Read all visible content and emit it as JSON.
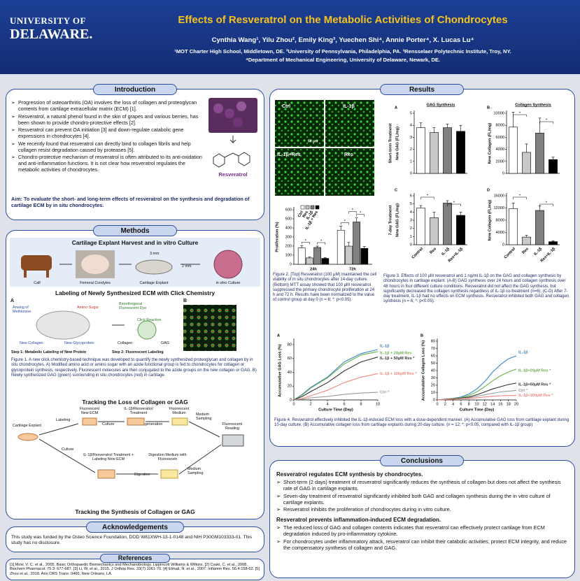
{
  "header": {
    "logo_line1": "UNIVERSITY OF",
    "logo_line2": "DELAWARE.",
    "title": "Effects of Resveratrol on the Metabolic Activities of Chondrocytes",
    "authors": "Cynthia Wang¹, Yilu Zhou², Emily King³, Yuechen Shi⁴, Annie Porter⁴, X. Lucas Lu⁴",
    "affiliations": [
      "¹MOT Charter High School, Middletown, DE. ²University of Pennsylvania, Philadelphia, PA. ³Rensselaer Polytechnic Institute, Troy, NY.",
      "⁴Department of Mechanical Engineering, University of Delaware, Newark, DE."
    ]
  },
  "introduction": {
    "heading": "Introduction",
    "bullets": [
      "Progression of osteoarthritis (OA) involves the loss of collagen and proteoglycan contents from cartilage extracellular matrix (ECM) [1].",
      "Resveratrol, a natural phenol found in the skin of grapes and various berries, has been shown to provide chondro-protective effects [2].",
      "Resveratrol can prevent OA initiation [3] and down-regulate catabolic gene expressions in chondrocytes [4].",
      "We recently found that resveratrol can directly bind to collagen fibrils and help collagen resist degradation caused by proteases [5].",
      "Chondro-protective mechanism of resveratrol is often attributed to its anti-oxidation and anti-inflammation functions. It is not clear how resveratrol regulates the metabolic activities of chondrocytes."
    ],
    "figure_label": "Resveratrol",
    "aim": "Aim: To evaluate the short- and long-term effects of resveratrol on the synthesis and degradation of cartilage ECM by in situ chondrocytes."
  },
  "methods": {
    "heading": "Methods",
    "section1": "Cartilage Explant Harvest and in vitro Culture",
    "steps": [
      "Calf",
      "Femoral Condyles",
      "Cartilage Explant",
      "in vitro Culture"
    ],
    "dims": [
      "3 mm",
      "2 mm"
    ],
    "section2": "Labeling of Newly Synthesized ECM with Click Chemistry",
    "click_labels": [
      "A",
      "Analog of Methionine",
      "Amino Sugar",
      "Chondrocyte",
      "New Collagen",
      "New Glycoprotein",
      "Step 1: Metabolic Labeling of New Protein",
      "Bioorthogonal Fluorescent Dye",
      "Click Reaction",
      "Collagen",
      "GAG",
      "Step 2: Fluorescent Labeling",
      "B",
      "40 µm"
    ],
    "caption": "Figure 1. A new click chemistry-based technique was developed to quantify the newly synthesized proteoglycan and collagen by in situ chondrocytes. A) Modified amino acid or amino sugar with an azide functional group is fed to chondrocytes for collagen or glycoprotein synthesis, respectively. Fluorescent molecules are then conjugated to the azide groups on the new collagen or GAG. B) Newly synthesized GAG (green) surrounding in situ chondrocytes (red) in cartilage.",
    "section3": "Tracking the Loss of Collagen or GAG",
    "flow_labels": [
      "Cartilage Explant",
      "Labeling",
      "Fluorescent New ECM",
      "Culture",
      "IL-1β/Resveratrol Treatment",
      "Degeneration",
      "Fluorescent Medium",
      "Medium Sampling",
      "Fluorescent Reading",
      "Culture",
      "IL-1β/Resveratrol Treatment + Labeling New ECM",
      "Digestion",
      "Digestion Medium with Fluorescein",
      "Medium Sampling"
    ],
    "section4": "Tracking the Synthesis of Collagen or GAG"
  },
  "acknowledgements": {
    "heading": "Acknowledgements",
    "text": "This study was funded by the Osteo Science Foundation, DOD W81XWH-13-1-0148 and NIH P30GM103333-01. This study has no disclosure."
  },
  "references": {
    "heading": "References",
    "text": "[1] Mow, V. C. et al., 2005. Basic Orthopaedic Biomechanics and Mechanobiology. Lippincott Williams & Wilkins. [2] Csaki, C. et al., 2008. Biochem Pharmacol. 75.3: 677-687. [3] Li, W. et al., 2015. J Orthop Res. 33(7):1061-70. [4] Elmali, N. et al., 2007. Inflamm Res. 56.4:158-62. [5] Zhou et al., 2018. Ann ORS Trans: 0466, New Orleans, LA."
  },
  "results": {
    "heading": "Results",
    "micro_labels": [
      "Ctrl",
      "IL-1β",
      "IL-1β+Res",
      "Res",
      "50 µm"
    ],
    "charts": [
      {
        "type": "grouped_bar",
        "ylabel": "Proliferation (%)",
        "categories": [
          "24h",
          "72h"
        ],
        "series": [
          {
            "name": "Ctrl",
            "color": "#ffffff",
            "values": [
              180,
              375
            ],
            "errors": [
              25,
              45
            ]
          },
          {
            "name": "Res",
            "color": "#c8c8c8",
            "values": [
              70,
              200
            ],
            "errors": [
              10,
              40
            ]
          },
          {
            "name": "IL-1β",
            "color": "#808080",
            "values": [
              185,
              465
            ],
            "errors": [
              15,
              45
            ]
          },
          {
            "name": "IL-1β + Res",
            "color": "#000000",
            "values": [
              65,
              175
            ],
            "errors": [
              8,
              20
            ]
          }
        ],
        "ylim": [
          0,
          600
        ],
        "yticks": [
          0,
          100,
          200,
          300,
          400,
          500,
          600
        ],
        "annotations": [
          "*",
          "*",
          "*",
          "*",
          "*"
        ]
      },
      {
        "type": "bar",
        "panel": "A",
        "title": "GAG Synthesis",
        "row_label": "Short-term Treatment",
        "ylabel": "New GAG (FL/mg)",
        "categories": [
          null,
          null,
          null,
          null
        ],
        "values": [
          3.8,
          3.4,
          3.8,
          3.5
        ],
        "errors": [
          0.4,
          0.4,
          0.3,
          0.5
        ],
        "colors": [
          "#ffffff",
          "#c8c8c8",
          "#808080",
          "#000000"
        ],
        "ylim": [
          0,
          5
        ],
        "yticks": [
          0,
          1,
          2,
          3,
          4,
          5
        ]
      },
      {
        "type": "bar",
        "panel": "B",
        "title": "Collagen Synthesis",
        "ylabel": "New Collagen (FL/mg)",
        "categories": [
          null,
          null,
          null,
          null
        ],
        "values": [
          7700,
          3500,
          6700,
          2300
        ],
        "errors": [
          2500,
          1400,
          2500,
          400
        ],
        "colors": [
          "#ffffff",
          "#c8c8c8",
          "#808080",
          "#000000"
        ],
        "ylim": [
          0,
          10000
        ],
        "yticks": [
          0,
          2000,
          4000,
          6000,
          8000,
          10000
        ],
        "annotations": [
          "*",
          "*"
        ]
      },
      {
        "type": "bar",
        "panel": "C",
        "row_label": "7-day Treatment",
        "ylabel": "New GAG (FL/mg)",
        "categories": [
          "Control",
          "Res",
          "IL-1β",
          "Res+IL-1β"
        ],
        "values": [
          4.5,
          3.3,
          5.1,
          3.6
        ],
        "errors": [
          0.3,
          0.7,
          0.3,
          0.4
        ],
        "colors": [
          "#ffffff",
          "#c8c8c8",
          "#808080",
          "#000000"
        ],
        "ylim": [
          0,
          6
        ],
        "yticks": [
          0,
          1,
          2,
          3,
          4,
          5,
          6
        ],
        "annotations": [
          "*",
          "*"
        ]
      },
      {
        "type": "bar",
        "panel": "D",
        "ylabel": "New Collagen (FL/mg)",
        "categories": [
          "Control",
          "Res",
          "IL-1β",
          "Res+IL-1β"
        ],
        "values": [
          11800,
          2500,
          11200,
          1000
        ],
        "errors": [
          1800,
          600,
          1500,
          300
        ],
        "colors": [
          "#ffffff",
          "#c8c8c8",
          "#808080",
          "#000000"
        ],
        "ylim": [
          0,
          16000
        ],
        "yticks": [
          0,
          4000,
          8000,
          12000,
          16000
        ],
        "annotations": [
          "*",
          "*"
        ]
      },
      {
        "type": "line",
        "panel": "A",
        "xlabel": "Culture Time (Day)",
        "ylabel": "Accumulative GAG Loss (%)",
        "x": [
          0,
          1,
          2,
          4,
          6,
          8,
          10
        ],
        "xlim": [
          0,
          10
        ],
        "xticks": [
          0,
          2,
          4,
          6,
          8,
          10
        ],
        "ylim": [
          0,
          85
        ],
        "yticks": [
          0,
          20,
          40,
          60,
          80
        ],
        "series": [
          {
            "name": "IL-1β",
            "color": "#3a86c8",
            "values": [
              0,
              8,
              18,
              33,
              55,
              67,
              73
            ]
          },
          {
            "name": "IL-1β + 20µM Res",
            "color": "#6ab04c",
            "values": [
              0,
              7,
              17,
              32,
              52,
              65,
              70
            ]
          },
          {
            "name": "IL-1β + 50µM Res *",
            "color": "#333333",
            "values": [
              0,
              5,
              12,
              25,
              42,
              55,
              62
            ]
          },
          {
            "name": "IL-1β + 100µM Res *",
            "color": "#f4877f",
            "values": [
              0,
              2,
              6,
              14,
              25,
              33,
              38
            ]
          },
          {
            "name": "Ctrl *",
            "color": "#9a9a9a",
            "values": [
              0,
              1,
              3,
              5,
              8,
              10,
              11
            ]
          }
        ]
      },
      {
        "type": "line",
        "panel": "B",
        "xlabel": "Culture Time (Day)",
        "ylabel": "Accumulative Collagen Loss (%)",
        "x": [
          0,
          2,
          4,
          6,
          8,
          10,
          12,
          14,
          16,
          18,
          20
        ],
        "xlim": [
          0,
          20
        ],
        "xticks": [
          0,
          2,
          4,
          6,
          8,
          10,
          12,
          14,
          16,
          18,
          20
        ],
        "ylim": [
          0,
          80
        ],
        "yticks": [
          0,
          10,
          20,
          30,
          40,
          50,
          60,
          70,
          80
        ],
        "series": [
          {
            "name": "IL-1β",
            "color": "#3a86c8",
            "values": [
              0,
              1,
              2,
              4,
              8,
              15,
              25,
              38,
              48,
              56,
              60
            ]
          },
          {
            "name": "IL-1β+20µM Res *",
            "color": "#6ab04c",
            "values": [
              0,
              1,
              2,
              3,
              6,
              11,
              18,
              26,
              33,
              38,
              42
            ]
          },
          {
            "name": "IL-1β+50µM Res *",
            "color": "#333333",
            "values": [
              0,
              1,
              1.5,
              2.5,
              4,
              7,
              11,
              15,
              18,
              21,
              23
            ]
          },
          {
            "name": "Ctrl *",
            "color": "#9a9a9a",
            "values": [
              0,
              0.5,
              1,
              2,
              3,
              5,
              7,
              9,
              11,
              12,
              13
            ]
          },
          {
            "name": "IL-1β+100µM Res *",
            "color": "#f4877f",
            "values": [
              0,
              0.5,
              1,
              1.5,
              2,
              3,
              4,
              5,
              5.5,
              6,
              6
            ]
          }
        ]
      }
    ],
    "figure2": "Figure 2. [Top] Resveratrol (100 µM) maintained the cell viability of in situ chondrocytes after 14-day culture. (Bottom) MTT assay showed that 100 µM resveratrol suppressed the primary chondrocyte proliferation at 24 h and 72 h. Results have been normalized to the value of control group at day 0 (n = 8; *: p<0.05).",
    "figure3": "Figure 3. Effects of 100 µM resveratrol and 1 ng/ml IL-1β on the GAG and collagen synthesis by chondrocytes in cartilage explant. (A-B) GAG synthesis over 24 hours and collagen synthesis over 48 hours in four different culture conditions. Resveratrol did not affect the GAG synthesis, but significantly decreased the collagen synthesis regardless of IL-1β co-treatment (n=6). (C-D) After 7-day treatment, IL-1β had no effects on ECM synthesis. Resveratrol inhibited both GAG and collagen synthesis (n = 6; *: p<0.05).",
    "figure4": "Figure 4. Resveratrol effectively inhibited the IL-1β-induced ECM loss with a dose-dependent manner. (A) Accumulative GAG loss from cartilage explant during 10-day culture. (B) Accumulative collagen loss from cartilage explants during 20-day culture. (n = 12; *: p<0.05, compared with IL-1β group)"
  },
  "conclusions": {
    "heading": "Conclusions",
    "subheading1": "Resveratrol regulates ECM synthesis by chondrocytes.",
    "bullets1": [
      "Short-term (2 days) treatment of resveratrol significantly reduces the synthesis of collagen but does not affect the synthesis rate of GAG in cartilage explants.",
      "Seven-day treatment of resveratrol significantly inhibited both GAG and collagen synthesis during the in vitro culture of cartilage explants.",
      "Resveratrol inhibits the proliferation of chondrocytes during in vitro culture."
    ],
    "subheading2": "Resveratrol prevents inflammation-induced ECM degradation.",
    "bullets2": [
      "The reduced loss of GAG and collagen contents indicates that resveratrol can effectively protect cartilage from ECM degradation induced by pro-inflammatory cytokine.",
      "For chondrocytes under inflammatory attack, resveratrol can inhibit their catabolic activities, protect ECM integrity, and reduce the compensatory synthesis of collagen and GAG."
    ]
  }
}
